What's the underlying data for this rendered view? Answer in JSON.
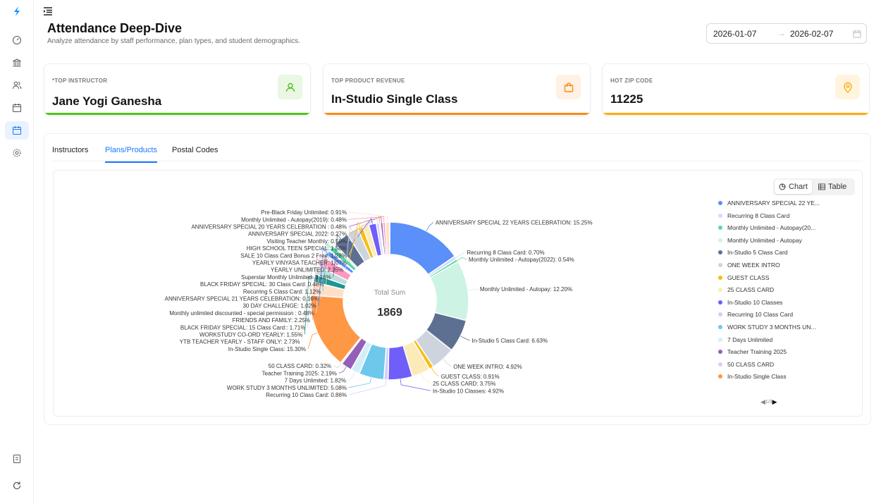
{
  "page": {
    "title": "Attendance Deep-Dive",
    "subtitle": "Analyze attendance by staff performance, plan types, and student demographics."
  },
  "date_range": {
    "start": "2026-01-07",
    "arrow": "→",
    "end": "2026-02-07"
  },
  "kpis": [
    {
      "label": "*TOP INSTRUCTOR",
      "value": "Jane Yogi Ganesha",
      "accent": "#52c41a",
      "icon_bg": "#e9f7e3",
      "icon": "user-icon"
    },
    {
      "label": "TOP PRODUCT REVENUE",
      "value": "In-Studio Single Class",
      "accent": "#fa8c16",
      "icon_bg": "#fff1e3",
      "icon": "shopping-bag-icon"
    },
    {
      "label": "HOT ZIP CODE",
      "value": "11225",
      "accent": "#faad14",
      "icon_bg": "#fff5de",
      "icon": "map-pin-icon"
    }
  ],
  "tabs": [
    {
      "label": "Instructors",
      "active": false
    },
    {
      "label": "Plans/Products",
      "active": true
    },
    {
      "label": "Postal Codes",
      "active": false
    }
  ],
  "view_toggle": {
    "chart": "Chart",
    "table": "Table",
    "selected": "Chart"
  },
  "legend_pager": {
    "text": "1/3",
    "prev": "◀",
    "next": "▶"
  },
  "chart_data": {
    "type": "pie",
    "variant": "donut",
    "center_label": "Total Sum",
    "center_value": "1869",
    "total": 1869,
    "slices": [
      {
        "name": "ANNIVERSARY SPECIAL 22 YEARS CELEBRATION",
        "percent": 15.25,
        "label": "ANNIVERSARY SPECIAL 22 YEARS CELEBRATION: 15.25%",
        "color": "#5b8ff9"
      },
      {
        "name": "Recurring 8 Class Card",
        "percent": 0.7,
        "label": "Recurring 8 Class Card: 0.70%",
        "color": "#cddcfd"
      },
      {
        "name": "Monthly Unlimited - Autopay(2022)",
        "percent": 0.54,
        "label": "Monthly Unlimited - Autopay(2022): 0.54%",
        "color": "#5ad8a6"
      },
      {
        "name": "Monthly Unlimited - Autopay",
        "percent": 12.2,
        "label": "Monthly Unlimited - Autopay: 12.20%",
        "color": "#cdf3e4"
      },
      {
        "name": "In-Studio 5 Class Card",
        "percent": 6.63,
        "label": "In-Studio 5 Class Card: 6.63%",
        "color": "#5d7092"
      },
      {
        "name": "ONE WEEK INTRO",
        "percent": 4.92,
        "label": "ONE WEEK INTRO: 4.92%",
        "color": "#ced4de"
      },
      {
        "name": "GUEST CLASS",
        "percent": 0.91,
        "label": "GUEST CLASS: 0.91%",
        "color": "#f6bd16"
      },
      {
        "name": "25 CLASS CARD",
        "percent": 3.75,
        "label": "25 CLASS CARD: 3.75%",
        "color": "#fcebb9"
      },
      {
        "name": "In-Studio 10 Classes",
        "percent": 4.92,
        "label": "In-Studio 10 Classes: 4.92%",
        "color": "#6f5ef9"
      },
      {
        "name": "Recurring 10 Class Card",
        "percent": 0.86,
        "label": "Recurring 10 Class Card: 0.86%",
        "color": "#d3cefd"
      },
      {
        "name": "WORK STUDY 3 MONTHS UNLIMITED",
        "percent": 5.08,
        "label": "WORK STUDY 3 MONTHS UNLIMITED: 5.08%",
        "color": "#6dc8ec"
      },
      {
        "name": "7 Days Unlimited",
        "percent": 1.82,
        "label": "7 Days Unlimited: 1.82%",
        "color": "#d3eef9"
      },
      {
        "name": "Teacher Training 2025",
        "percent": 2.19,
        "label": "Teacher Training 2025: 2.19%",
        "color": "#945fb9"
      },
      {
        "name": "50 CLASS CARD",
        "percent": 0.32,
        "label": "50 CLASS CARD: 0.32%",
        "color": "#dfcfea"
      },
      {
        "name": "In-Studio Single Class",
        "percent": 15.3,
        "label": "In-Studio Single Class: 15.30%",
        "color": "#ff9845"
      },
      {
        "name": "YTB TEACHER YEARLY - STAFF ONLY",
        "percent": 2.73,
        "label": "YTB TEACHER YEARLY - STAFF ONLY: 2.73%",
        "color": "#ffe0c7"
      },
      {
        "name": "WORKSTUDY CO-ORD YEARLY",
        "percent": 1.55,
        "label": "WORKSTUDY CO-ORD YEARLY: 1.55%",
        "color": "#1e9493"
      },
      {
        "name": "BLACK FRIDAY SPECIAL: 15 Class Card:",
        "percent": 1.71,
        "label": "BLACK FRIDAY SPECIAL: 15 Class Card:: 1.71%",
        "color": "#bbdede"
      },
      {
        "name": "FRIENDS AND FAMILY",
        "percent": 2.25,
        "label": "FRIENDS AND FAMILY: 2.25%",
        "color": "#ff99c3"
      },
      {
        "name": "Monthly unlimited discounted - special permission",
        "percent": 0.48,
        "label": "Monthly unlimited discounted - special permission : 0.48%",
        "color": "#ffe0ed"
      },
      {
        "name": "30 DAY CHALLENGE",
        "percent": 1.02,
        "label": "30 DAY CHALLENGE: 1.02%",
        "color": "#5b8ff9"
      },
      {
        "name": "ANNIVERSARY SPECIAL 21 YEARS CELEBRATION",
        "percent": 0.16,
        "label": "ANNIVERSARY SPECIAL 21 YEARS CELEBRATION: 0.16%",
        "color": "#cddcfd"
      },
      {
        "name": "Recurring 5 Class Card",
        "percent": 1.12,
        "label": "Recurring 5 Class Card: 1.12%",
        "color": "#5ad8a6"
      },
      {
        "name": "BLACK FRIDAY SPECIAL: 30 Class Card",
        "percent": 0.48,
        "label": "BLACK FRIDAY SPECIAL: 30 Class Card: 0.48%",
        "color": "#cdf3e4"
      },
      {
        "name": "Superstar Monthly Unlimited",
        "percent": 3.16,
        "label": "Superstar Monthly Unlimited: 3.16%",
        "color": "#5d7092"
      },
      {
        "name": "YEARLY UNLIMITED",
        "percent": 2.35,
        "label": "YEARLY UNLIMITED: 2.35%",
        "color": "#ced4de"
      },
      {
        "name": "YEARLY VINYASA TEACHER",
        "percent": 1.07,
        "label": "YEARLY VINYASA TEACHER: 1.07%",
        "color": "#f6bd16"
      },
      {
        "name": "SALE 10 Class Card Bonus 2 Free",
        "percent": 1.28,
        "label": "SALE 10 Class Card Bonus 2 Free: 1.28%",
        "color": "#fcebb9"
      },
      {
        "name": "HIGH SCHOOL TEEN SPECIAL",
        "percent": 1.5,
        "label": "HIGH SCHOOL TEEN SPECIAL: 1.50%",
        "color": "#6f5ef9"
      },
      {
        "name": "Visiting Teacher Monthly",
        "percent": 0.59,
        "label": "Visiting Teacher Monthly: 0.59%",
        "color": "#d3cefd"
      },
      {
        "name": "ANNIVERSARY SPECIAL 2022",
        "percent": 0.27,
        "label": "ANNIVERSARY SPECIAL 2022: 0.27%",
        "color": "#ff9845"
      },
      {
        "name": "ANNIVERSARY SPECIAL 20 YEARS CELEBRATION",
        "percent": 0.48,
        "label": "ANNIVERSARY SPECIAL 20 YEARS CELEBRATION : 0.48%",
        "color": "#945fb9"
      },
      {
        "name": "Monthly Unlimited - Autopay(2019)",
        "percent": 0.48,
        "label": "Monthly Unlimited - Autopay(2019): 0.48%",
        "color": "#ff99c3"
      },
      {
        "name": "Pre-Black Friday Unlimited",
        "percent": 0.91,
        "label": "Pre-Black Friday Unlimited: 0.91%",
        "color": "#ffe0c7"
      }
    ],
    "legend": {
      "position": "right",
      "items": [
        {
          "name": "ANNIVERSARY SPECIAL 22 YE...",
          "color": "#5b8ff9"
        },
        {
          "name": "Recurring 8 Class Card",
          "color": "#cddcfd"
        },
        {
          "name": "Monthly Unlimited - Autopay(20...",
          "color": "#5ad8a6"
        },
        {
          "name": "Monthly Unlimited - Autopay",
          "color": "#cdf3e4"
        },
        {
          "name": "In-Studio 5 Class Card",
          "color": "#5d7092"
        },
        {
          "name": "ONE WEEK INTRO",
          "color": "#ced4de"
        },
        {
          "name": "GUEST CLASS",
          "color": "#f6bd16"
        },
        {
          "name": "25 CLASS CARD",
          "color": "#fcebb9"
        },
        {
          "name": "In-Studio 10 Classes",
          "color": "#6f5ef9"
        },
        {
          "name": "Recurring 10 Class Card",
          "color": "#d3cefd"
        },
        {
          "name": "WORK STUDY 3 MONTHS UN...",
          "color": "#6dc8ec"
        },
        {
          "name": "7 Days Unlimited",
          "color": "#d3eef9"
        },
        {
          "name": "Teacher Training 2025",
          "color": "#945fb9"
        },
        {
          "name": "50 CLASS CARD",
          "color": "#dfcfea"
        },
        {
          "name": "In-Studio Single Class",
          "color": "#ff9845"
        }
      ]
    }
  }
}
